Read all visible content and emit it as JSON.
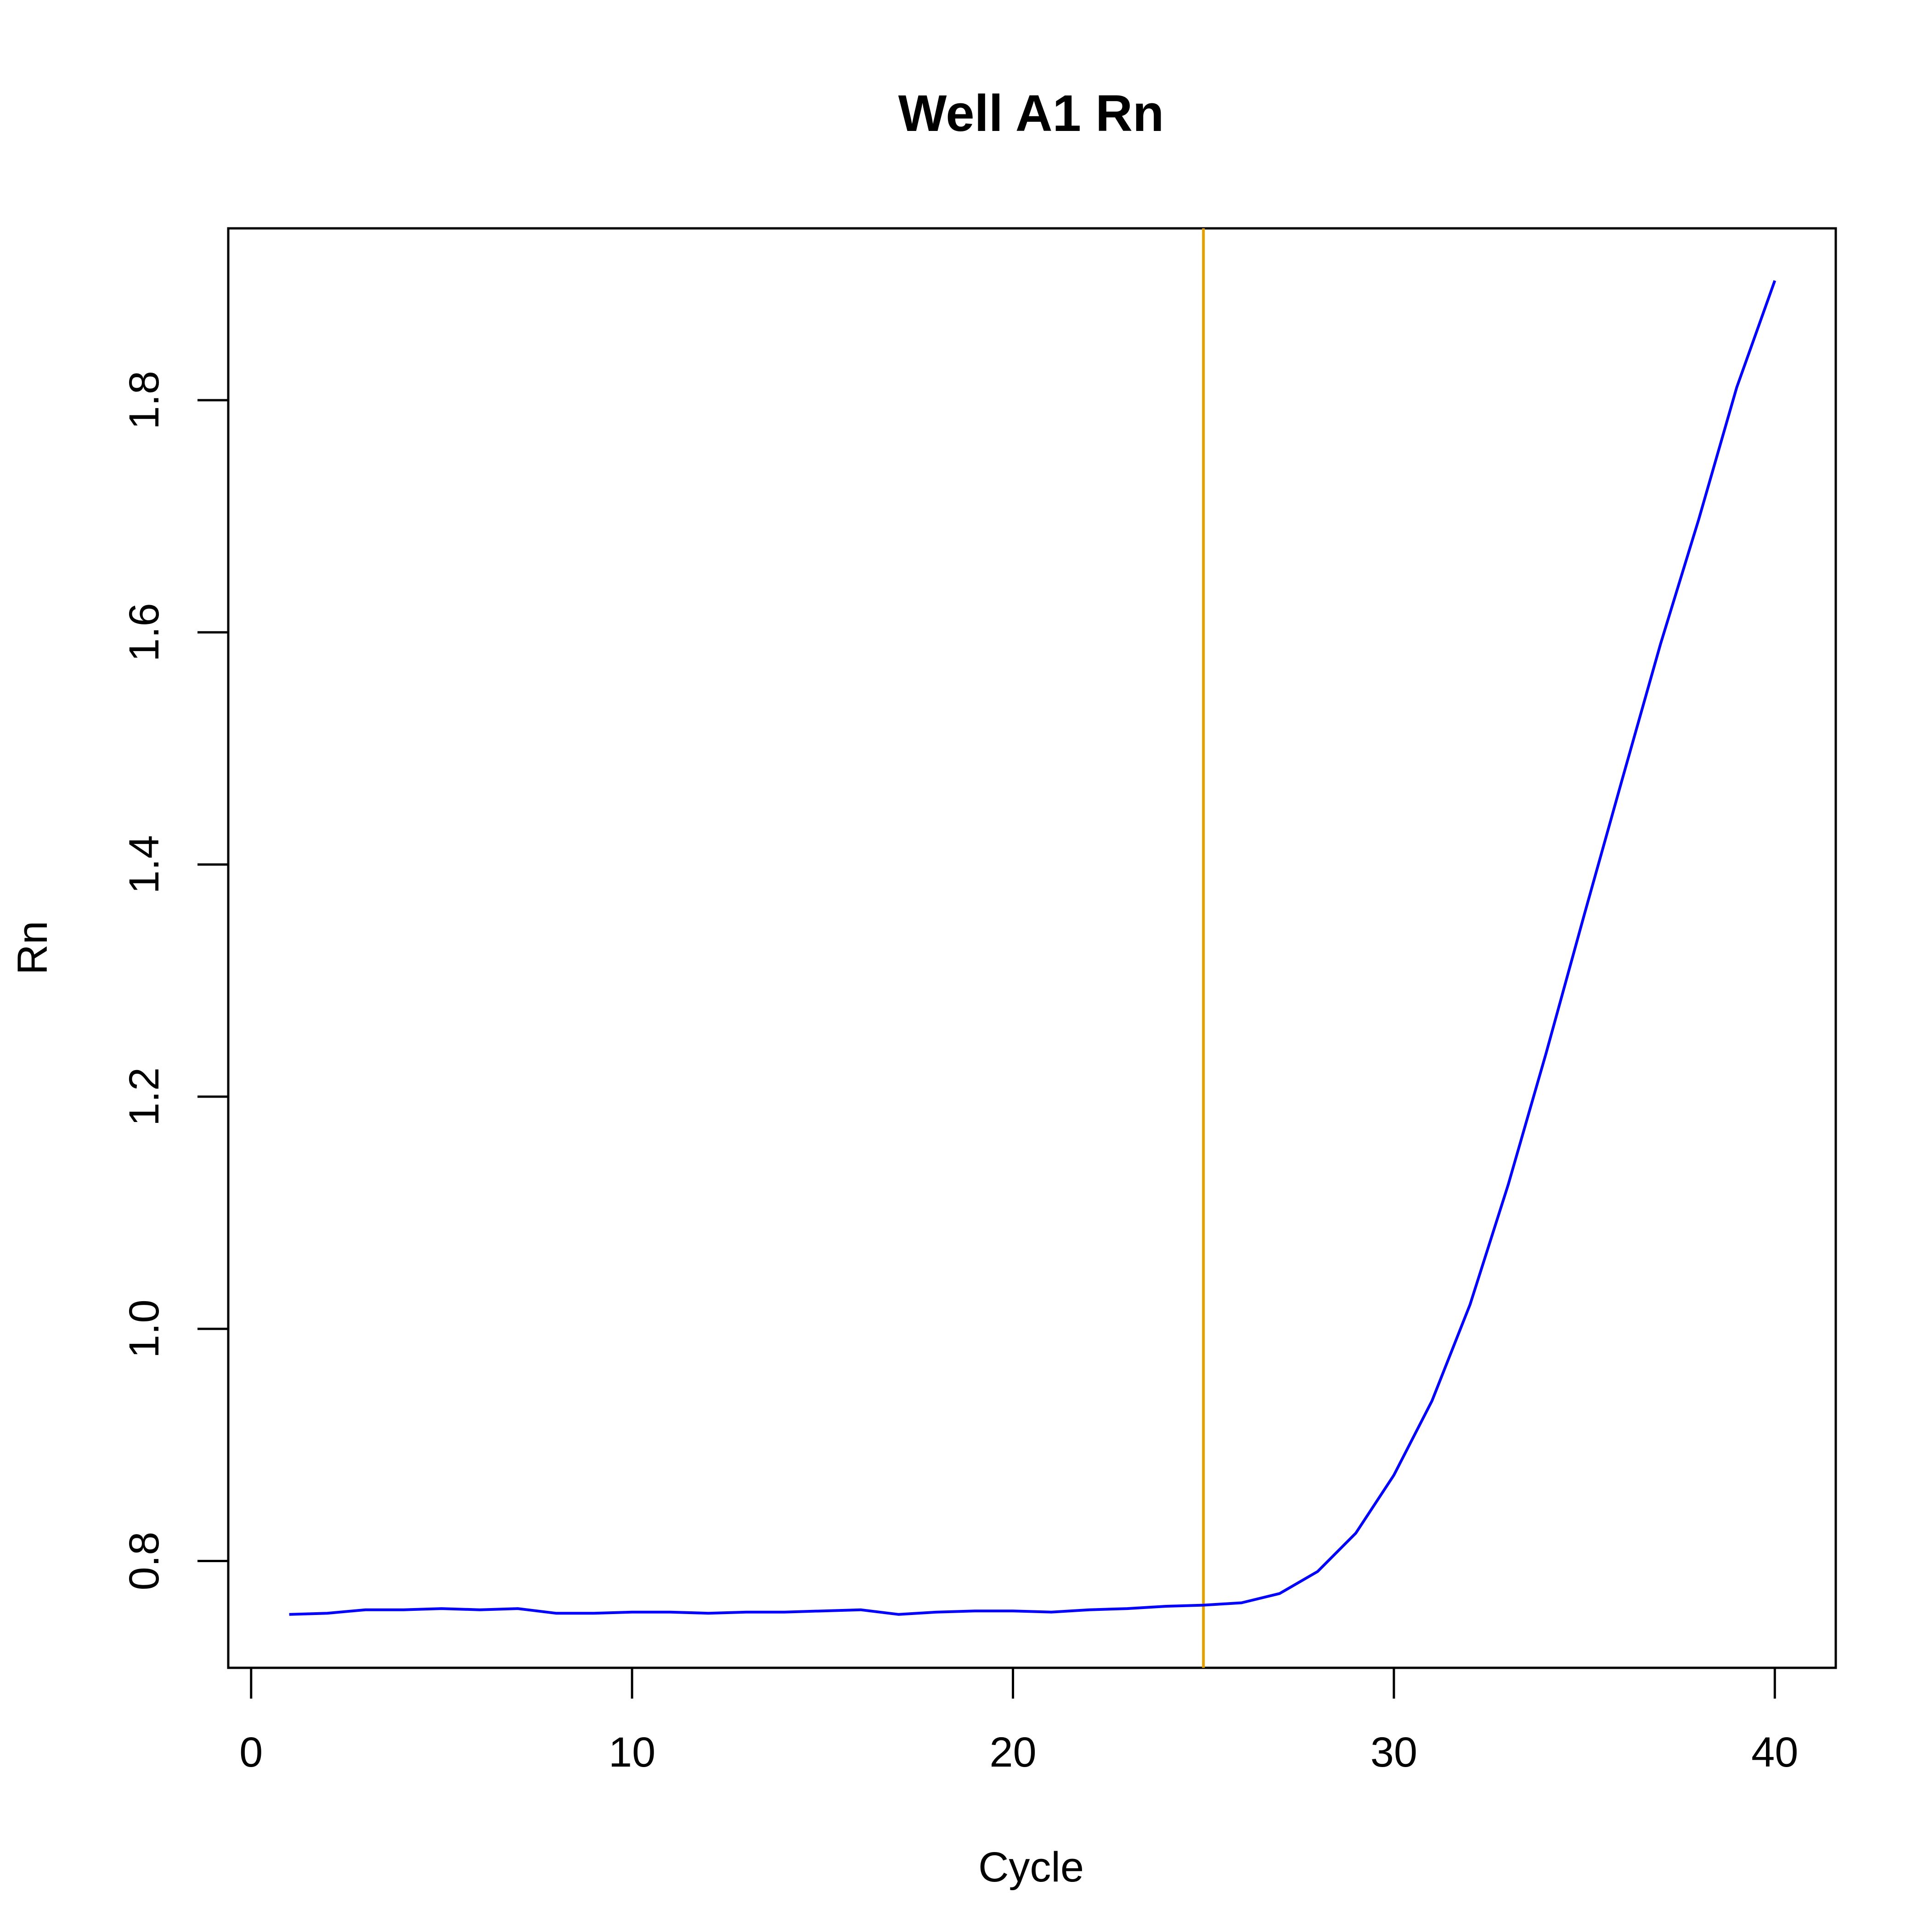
{
  "chart_data": {
    "type": "line",
    "title": "Well A1 Rn",
    "xlabel": "Cycle",
    "ylabel": "Rn",
    "xlim": [
      -0.6,
      41.6
    ],
    "ylim": [
      0.708,
      1.948
    ],
    "xticks": [
      0,
      10,
      20,
      30,
      40
    ],
    "xtick_labels": [
      "0",
      "10",
      "20",
      "30",
      "40"
    ],
    "yticks": [
      0.8,
      1.0,
      1.2,
      1.4,
      1.6,
      1.8
    ],
    "ytick_labels": [
      "0.8",
      "1.0",
      "1.2",
      "1.4",
      "1.6",
      "1.8"
    ],
    "grid": false,
    "legend": "none",
    "series": [
      {
        "color": "#0000ff",
        "x": [
          1,
          2,
          3,
          4,
          5,
          6,
          7,
          8,
          9,
          10,
          11,
          12,
          13,
          14,
          15,
          16,
          17,
          18,
          19,
          20,
          21,
          22,
          23,
          24,
          25,
          26,
          27,
          28,
          29,
          30,
          31,
          32,
          33,
          34,
          35,
          36,
          37,
          38,
          39,
          40
        ],
        "y": [
          0.754,
          0.755,
          0.758,
          0.758,
          0.759,
          0.758,
          0.759,
          0.755,
          0.755,
          0.756,
          0.756,
          0.755,
          0.756,
          0.756,
          0.757,
          0.758,
          0.754,
          0.756,
          0.757,
          0.757,
          0.756,
          0.758,
          0.759,
          0.761,
          0.762,
          0.764,
          0.772,
          0.791,
          0.824,
          0.874,
          0.938,
          1.021,
          1.124,
          1.238,
          1.357,
          1.474,
          1.59,
          1.697,
          1.811,
          1.903
        ]
      }
    ],
    "vline": {
      "x": 25,
      "color": "#e69f00"
    }
  }
}
